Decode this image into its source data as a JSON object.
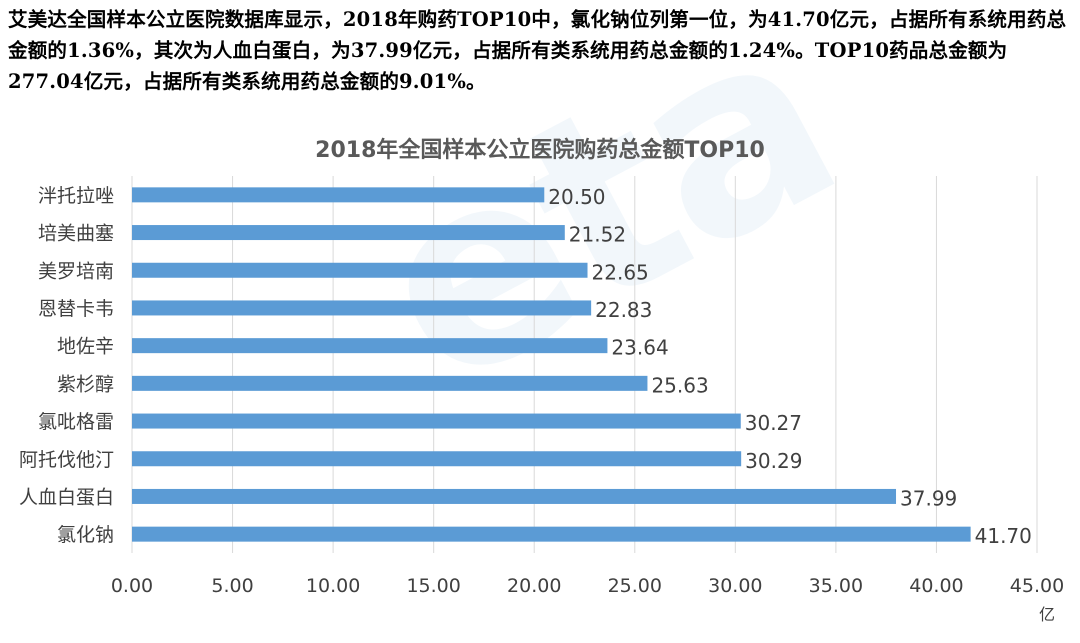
{
  "intro_text": "艾美达全国样本公立医院数据库显示，2018年购药TOP10中，氯化钠位列第一位，为41.70亿元，占据所有系统用药总金额的1.36%，其次为人血白蛋白，为37.99亿元，占据所有类系统用药总金额的1.24%。TOP10药品总金额为277.04亿元，占据所有类系统用药总金额的9.01%。",
  "chart_data": {
    "type": "bar",
    "orientation": "horizontal",
    "title": "2018年全国样本公立医院购药总金额TOP10",
    "categories": [
      "泮托拉唑",
      "培美曲塞",
      "美罗培南",
      "恩替卡韦",
      "地佐辛",
      "紫杉醇",
      "氯吡格雷",
      "阿托伐他汀",
      "人血白蛋白",
      "氯化钠"
    ],
    "values": [
      20.5,
      21.52,
      22.65,
      22.83,
      23.64,
      25.63,
      30.27,
      30.29,
      37.99,
      41.7
    ],
    "value_labels": [
      "20.50",
      "21.52",
      "22.65",
      "22.83",
      "23.64",
      "25.63",
      "30.27",
      "30.29",
      "37.99",
      "41.70"
    ],
    "xlim": [
      0,
      45
    ],
    "xticks": [
      "0.00",
      "5.00",
      "10.00",
      "15.00",
      "20.00",
      "25.00",
      "30.00",
      "35.00",
      "40.00",
      "45.00"
    ],
    "xunit": "亿",
    "grid": true,
    "bar_color": "#5b9bd5",
    "grid_color": "#d9d9d9",
    "text_color": "#404040"
  }
}
